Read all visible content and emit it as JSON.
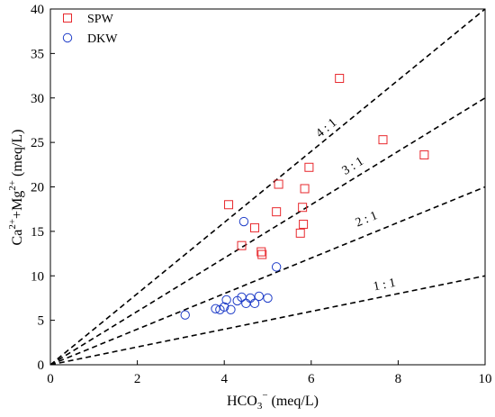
{
  "chart_data": {
    "type": "scatter",
    "xlim": [
      0,
      10
    ],
    "ylim": [
      0,
      40
    ],
    "x_ticks": [
      0,
      2,
      4,
      6,
      8,
      10
    ],
    "y_ticks": [
      0,
      5,
      10,
      15,
      20,
      25,
      30,
      35,
      40
    ],
    "grid": false,
    "legend_position": "top-left",
    "ylabel": {
      "base": "Ca",
      "sup1": "2+",
      "mid": "+Mg",
      "sup2": "2+",
      "unit": " (meq/L)"
    },
    "xlabel": {
      "base": "HCO",
      "sub": "3",
      "sup": "−",
      "unit": " (meq/L)"
    },
    "ratio_lines": [
      {
        "label": "4 : 1",
        "slope": 4,
        "label_at": [
          6.4,
          26.3
        ]
      },
      {
        "label": "3 : 1",
        "slope": 3,
        "label_at": [
          7.0,
          22.0
        ]
      },
      {
        "label": "2 : 1",
        "slope": 2,
        "label_at": [
          7.3,
          16.0
        ]
      },
      {
        "label": "1 : 1",
        "slope": 1,
        "label_at": [
          7.7,
          8.6
        ]
      }
    ],
    "series": [
      {
        "name": "SPW",
        "marker": "square",
        "color": "#e8282d",
        "points": [
          [
            4.1,
            18.0
          ],
          [
            4.4,
            13.4
          ],
          [
            4.7,
            15.4
          ],
          [
            4.85,
            12.7
          ],
          [
            4.87,
            12.4
          ],
          [
            5.2,
            17.2
          ],
          [
            5.25,
            20.3
          ],
          [
            5.75,
            14.8
          ],
          [
            5.8,
            17.7
          ],
          [
            5.82,
            15.8
          ],
          [
            5.85,
            19.8
          ],
          [
            5.95,
            22.2
          ],
          [
            6.65,
            32.2
          ],
          [
            7.65,
            25.3
          ],
          [
            8.6,
            23.6
          ]
        ]
      },
      {
        "name": "DKW",
        "marker": "circle",
        "color": "#1e3cc8",
        "points": [
          [
            3.1,
            5.6
          ],
          [
            3.8,
            6.3
          ],
          [
            3.9,
            6.2
          ],
          [
            4.0,
            6.5
          ],
          [
            4.05,
            7.3
          ],
          [
            4.15,
            6.2
          ],
          [
            4.3,
            7.2
          ],
          [
            4.4,
            7.6
          ],
          [
            4.45,
            16.1
          ],
          [
            4.5,
            6.9
          ],
          [
            4.6,
            7.5
          ],
          [
            4.7,
            6.9
          ],
          [
            4.8,
            7.7
          ],
          [
            5.0,
            7.5
          ],
          [
            5.2,
            11.0
          ]
        ]
      }
    ]
  }
}
